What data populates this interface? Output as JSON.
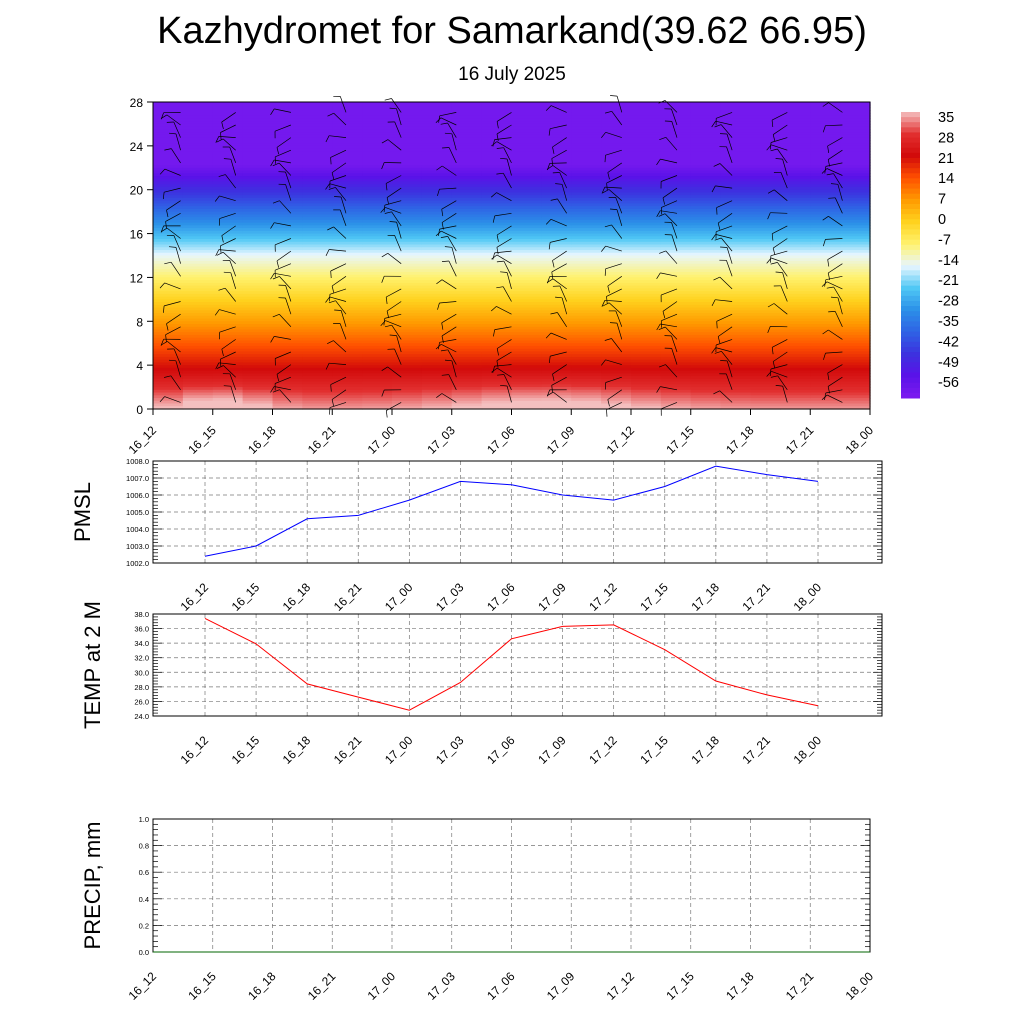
{
  "title": "Kazhydromet for Samarkand(39.62 66.95)",
  "subtitle": "16 July 2025",
  "chart_data": [
    {
      "type": "heatmap",
      "name": "temperature-cross-section",
      "x_categories": [
        "16_12",
        "16_15",
        "16_18",
        "16_21",
        "17_00",
        "17_03",
        "17_06",
        "17_09",
        "17_12",
        "17_15",
        "17_18",
        "17_21",
        "18_00"
      ],
      "y_ticks": [
        0,
        4,
        8,
        12,
        16,
        20,
        24,
        28
      ],
      "ylim": [
        0,
        28
      ],
      "colorbar": {
        "labels": [
          "35",
          "28",
          "21",
          "14",
          "7",
          "0",
          "-7",
          "-14",
          "-21",
          "-28",
          "-35",
          "-42",
          "-49",
          "-56"
        ],
        "range": [
          -60,
          38
        ],
        "colors": [
          "#f4c0c0",
          "#e23030",
          "#d20a0a",
          "#ff5000",
          "#ff9a00",
          "#ffd21e",
          "#fff26e",
          "#e8f6ff",
          "#50c8f5",
          "#2b90e8",
          "#2f63e5",
          "#3c32df",
          "#5a12e8",
          "#7d1bf0"
        ]
      },
      "grid": false,
      "wind_barbs": true
    },
    {
      "type": "line",
      "name": "pmsl",
      "ylabel": "PMSL",
      "x_categories": [
        "16_12",
        "16_15",
        "16_18",
        "16_21",
        "17_00",
        "17_03",
        "17_06",
        "17_09",
        "17_12",
        "17_15",
        "17_18",
        "17_21",
        "18_00"
      ],
      "y_ticks": [
        "1002.0",
        "1003.0",
        "1004.0",
        "1005.0",
        "1006.0",
        "1007.0",
        "1008.0"
      ],
      "ylim": [
        1002,
        1008
      ],
      "series": [
        {
          "values": [
            1002.4,
            1003.0,
            1004.6,
            1004.8,
            1005.7,
            1006.8,
            1006.6,
            1006.0,
            1005.7,
            1006.5,
            1007.7,
            1007.2,
            1006.8
          ],
          "color": "#0000ff"
        }
      ],
      "grid": true
    },
    {
      "type": "line",
      "name": "temp2m",
      "ylabel": "TEMP at 2 M",
      "x_categories": [
        "16_12",
        "16_15",
        "16_18",
        "16_21",
        "17_00",
        "17_03",
        "17_06",
        "17_09",
        "17_12",
        "17_15",
        "17_18",
        "17_21",
        "18_00"
      ],
      "y_ticks": [
        "24.0",
        "26.0",
        "28.0",
        "30.0",
        "32.0",
        "34.0",
        "36.0",
        "38.0"
      ],
      "ylim": [
        24,
        38
      ],
      "series": [
        {
          "values": [
            37.4,
            33.9,
            28.4,
            26.6,
            24.8,
            28.6,
            34.6,
            36.3,
            36.5,
            33.1,
            28.8,
            26.9,
            25.4
          ],
          "color": "#ff0000"
        }
      ],
      "grid": true
    },
    {
      "type": "line",
      "name": "precip",
      "ylabel": "PRECIP, mm",
      "x_categories": [
        "16_12",
        "16_15",
        "16_18",
        "16_21",
        "17_00",
        "17_03",
        "17_06",
        "17_09",
        "17_12",
        "17_15",
        "17_18",
        "17_21",
        "18_00"
      ],
      "y_ticks": [
        "0.0",
        "0.2",
        "0.4",
        "0.6",
        "0.8",
        "1.0"
      ],
      "ylim": [
        0,
        1
      ],
      "series": [
        {
          "values": [
            0,
            0,
            0,
            0,
            0,
            0,
            0,
            0,
            0,
            0,
            0,
            0,
            0
          ],
          "color": "#006400"
        }
      ],
      "grid": true
    }
  ]
}
